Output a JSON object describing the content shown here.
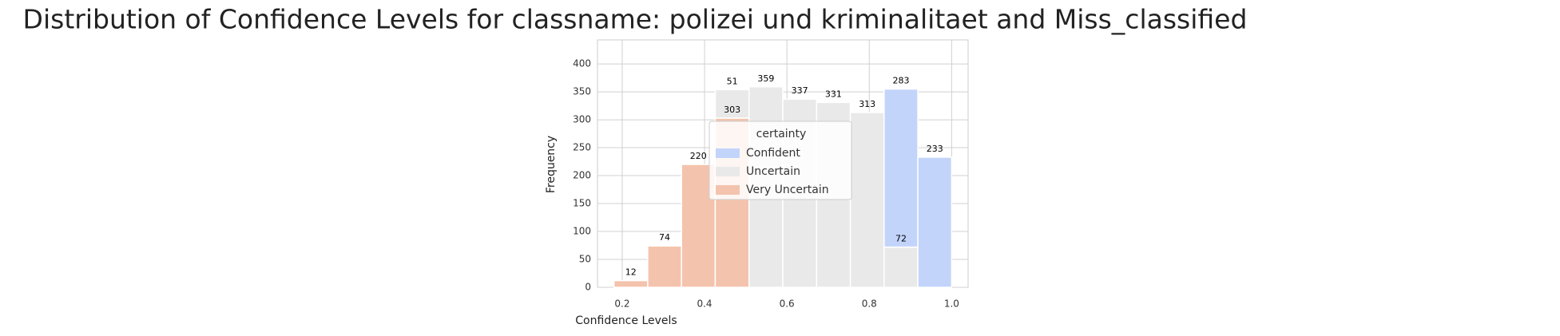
{
  "chart_data": {
    "type": "histogram",
    "title": "Distribution of Confidence Levels for classname: polizei und kriminalitaet and Miss_classified",
    "x_label": "Confidence Levels",
    "y_label": "Frequency",
    "legend_title": "certainty",
    "bins": [
      0.18,
      0.262,
      0.344,
      0.426,
      0.508,
      0.59,
      0.672,
      0.754,
      0.836,
      0.918,
      1.0
    ],
    "series": [
      {
        "name": "Very Uncertain",
        "color": "#f4c3ad",
        "values": [
          12,
          74,
          220,
          303,
          0,
          0,
          0,
          0,
          0,
          0
        ]
      },
      {
        "name": "Uncertain",
        "color": "#e9e9e9",
        "values": [
          0,
          0,
          0,
          51,
          359,
          337,
          331,
          313,
          72,
          0
        ]
      },
      {
        "name": "Confident",
        "color": "#c3d4fb",
        "values": [
          0,
          0,
          0,
          0,
          0,
          0,
          0,
          0,
          283,
          233
        ]
      }
    ],
    "legend_order": [
      2,
      1,
      0
    ],
    "stacked": true,
    "xlim": [
      0.14,
      1.04
    ],
    "ylim": [
      0,
      443
    ],
    "xticks": [
      0.2,
      0.4,
      0.6,
      0.8,
      {
        "value": 1,
        "label": "1.0"
      }
    ],
    "yticks": [
      0,
      50,
      100,
      150,
      200,
      250,
      300,
      350,
      400
    ],
    "grid": true
  }
}
